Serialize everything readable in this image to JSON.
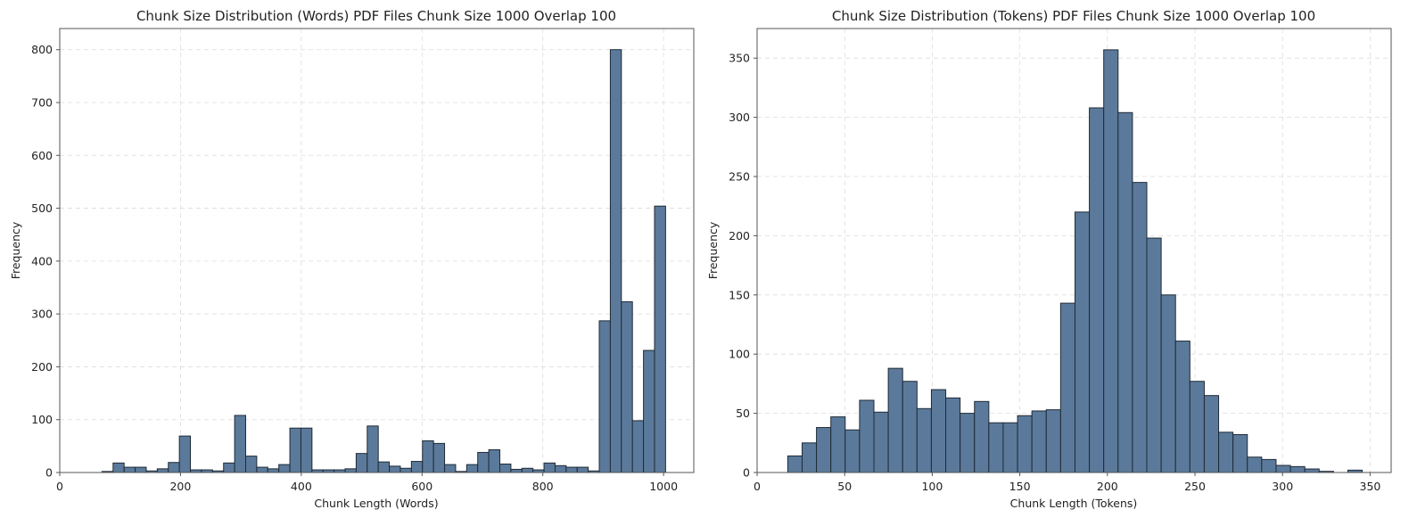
{
  "colors": {
    "bar_fill": "#5b7a9b",
    "bar_edge": "#1f2a36",
    "grid": "#dcdcdc",
    "background": "#ffffff"
  },
  "chart_data": [
    {
      "type": "bar",
      "title": "Chunk Size Distribution (Words) PDF Files Chunk Size 1000 Overlap 100",
      "xlabel": "Chunk Length (Words)",
      "ylabel": "Frequency",
      "xlim": [
        0,
        1050
      ],
      "ylim": [
        0,
        840
      ],
      "xticks": [
        0,
        200,
        400,
        600,
        800,
        1000
      ],
      "yticks": [
        0,
        100,
        200,
        300,
        400,
        500,
        600,
        700,
        800
      ],
      "grid": true,
      "bins": [
        {
          "x0": 70,
          "x1": 88.3,
          "value": 2
        },
        {
          "x0": 88.3,
          "x1": 106.6,
          "value": 18
        },
        {
          "x0": 106.6,
          "x1": 124.9,
          "value": 10
        },
        {
          "x0": 124.9,
          "x1": 143.2,
          "value": 10
        },
        {
          "x0": 143.2,
          "x1": 161.5,
          "value": 3
        },
        {
          "x0": 161.5,
          "x1": 179.8,
          "value": 7
        },
        {
          "x0": 179.8,
          "x1": 198.1,
          "value": 19
        },
        {
          "x0": 198.1,
          "x1": 216.4,
          "value": 69
        },
        {
          "x0": 216.4,
          "x1": 234.7,
          "value": 5
        },
        {
          "x0": 234.7,
          "x1": 253,
          "value": 5
        },
        {
          "x0": 253,
          "x1": 271.3,
          "value": 3
        },
        {
          "x0": 271.3,
          "x1": 289.6,
          "value": 18
        },
        {
          "x0": 289.6,
          "x1": 307.9,
          "value": 108
        },
        {
          "x0": 307.9,
          "x1": 326.2,
          "value": 31
        },
        {
          "x0": 326.2,
          "x1": 344.5,
          "value": 10
        },
        {
          "x0": 344.5,
          "x1": 362.8,
          "value": 7
        },
        {
          "x0": 362.8,
          "x1": 381.1,
          "value": 15
        },
        {
          "x0": 381.1,
          "x1": 399.4,
          "value": 84
        },
        {
          "x0": 399.4,
          "x1": 417.7,
          "value": 84
        },
        {
          "x0": 417.7,
          "x1": 436,
          "value": 5
        },
        {
          "x0": 436,
          "x1": 454.3,
          "value": 5
        },
        {
          "x0": 454.3,
          "x1": 472.6,
          "value": 5
        },
        {
          "x0": 472.6,
          "x1": 490.9,
          "value": 7
        },
        {
          "x0": 490.9,
          "x1": 509.2,
          "value": 36
        },
        {
          "x0": 509.2,
          "x1": 527.5,
          "value": 88
        },
        {
          "x0": 527.5,
          "x1": 545.8,
          "value": 20
        },
        {
          "x0": 545.8,
          "x1": 564.1,
          "value": 12
        },
        {
          "x0": 564.1,
          "x1": 582.4,
          "value": 8
        },
        {
          "x0": 582.4,
          "x1": 600.7,
          "value": 21
        },
        {
          "x0": 600.7,
          "x1": 619,
          "value": 60
        },
        {
          "x0": 619,
          "x1": 637.3,
          "value": 55
        },
        {
          "x0": 637.3,
          "x1": 655.6,
          "value": 15
        },
        {
          "x0": 655.6,
          "x1": 673.9,
          "value": 2
        },
        {
          "x0": 673.9,
          "x1": 692.2,
          "value": 15
        },
        {
          "x0": 692.2,
          "x1": 710.5,
          "value": 38
        },
        {
          "x0": 710.5,
          "x1": 728.8,
          "value": 43
        },
        {
          "x0": 728.8,
          "x1": 747.1,
          "value": 16
        },
        {
          "x0": 747.1,
          "x1": 765.4,
          "value": 6
        },
        {
          "x0": 765.4,
          "x1": 783.7,
          "value": 8
        },
        {
          "x0": 783.7,
          "x1": 802,
          "value": 5
        },
        {
          "x0": 802,
          "x1": 820.3,
          "value": 18
        },
        {
          "x0": 820.3,
          "x1": 838.6,
          "value": 13
        },
        {
          "x0": 838.6,
          "x1": 856.9,
          "value": 10
        },
        {
          "x0": 856.9,
          "x1": 875.2,
          "value": 10
        },
        {
          "x0": 875.2,
          "x1": 893.5,
          "value": 3
        },
        {
          "x0": 893.5,
          "x1": 911.8,
          "value": 287
        },
        {
          "x0": 911.8,
          "x1": 930.1,
          "value": 800
        },
        {
          "x0": 930.1,
          "x1": 948.4,
          "value": 323
        },
        {
          "x0": 948.4,
          "x1": 966.7,
          "value": 98
        },
        {
          "x0": 966.7,
          "x1": 985,
          "value": 231
        },
        {
          "x0": 985,
          "x1": 1003.3,
          "value": 504
        }
      ]
    },
    {
      "type": "bar",
      "title": "Chunk Size Distribution (Tokens) PDF Files Chunk Size 1000 Overlap 100",
      "xlabel": "Chunk Length (Tokens)",
      "ylabel": "Frequency",
      "xlim": [
        0,
        362
      ],
      "ylim": [
        0,
        375
      ],
      "xticks": [
        0,
        50,
        100,
        150,
        200,
        250,
        300,
        350
      ],
      "yticks": [
        0,
        50,
        100,
        150,
        200,
        250,
        300,
        350
      ],
      "grid": true,
      "bins": [
        {
          "x0": 17.5,
          "x1": 25.7,
          "value": 14
        },
        {
          "x0": 25.7,
          "x1": 33.9,
          "value": 25
        },
        {
          "x0": 33.9,
          "x1": 42.1,
          "value": 38
        },
        {
          "x0": 42.1,
          "x1": 50.3,
          "value": 47
        },
        {
          "x0": 50.3,
          "x1": 58.5,
          "value": 36
        },
        {
          "x0": 58.5,
          "x1": 66.7,
          "value": 61
        },
        {
          "x0": 66.7,
          "x1": 74.9,
          "value": 51
        },
        {
          "x0": 74.9,
          "x1": 83.1,
          "value": 88
        },
        {
          "x0": 83.1,
          "x1": 91.3,
          "value": 77
        },
        {
          "x0": 91.3,
          "x1": 99.5,
          "value": 54
        },
        {
          "x0": 99.5,
          "x1": 107.7,
          "value": 70
        },
        {
          "x0": 107.7,
          "x1": 115.9,
          "value": 63
        },
        {
          "x0": 115.9,
          "x1": 124.1,
          "value": 50
        },
        {
          "x0": 124.1,
          "x1": 132.3,
          "value": 60
        },
        {
          "x0": 132.3,
          "x1": 140.5,
          "value": 42
        },
        {
          "x0": 140.5,
          "x1": 148.7,
          "value": 42
        },
        {
          "x0": 148.7,
          "x1": 156.9,
          "value": 48
        },
        {
          "x0": 156.9,
          "x1": 165.1,
          "value": 52
        },
        {
          "x0": 165.1,
          "x1": 173.3,
          "value": 53
        },
        {
          "x0": 173.3,
          "x1": 181.5,
          "value": 143
        },
        {
          "x0": 181.5,
          "x1": 189.7,
          "value": 220
        },
        {
          "x0": 189.7,
          "x1": 197.9,
          "value": 308
        },
        {
          "x0": 197.9,
          "x1": 206.1,
          "value": 357
        },
        {
          "x0": 206.1,
          "x1": 214.3,
          "value": 304
        },
        {
          "x0": 214.3,
          "x1": 222.5,
          "value": 245
        },
        {
          "x0": 222.5,
          "x1": 230.7,
          "value": 198
        },
        {
          "x0": 230.7,
          "x1": 238.9,
          "value": 150
        },
        {
          "x0": 238.9,
          "x1": 247.1,
          "value": 111
        },
        {
          "x0": 247.1,
          "x1": 255.3,
          "value": 77
        },
        {
          "x0": 255.3,
          "x1": 263.5,
          "value": 65
        },
        {
          "x0": 263.5,
          "x1": 271.7,
          "value": 34
        },
        {
          "x0": 271.7,
          "x1": 279.9,
          "value": 32
        },
        {
          "x0": 279.9,
          "x1": 288.1,
          "value": 13
        },
        {
          "x0": 288.1,
          "x1": 296.3,
          "value": 11
        },
        {
          "x0": 296.3,
          "x1": 304.5,
          "value": 6
        },
        {
          "x0": 304.5,
          "x1": 312.7,
          "value": 5
        },
        {
          "x0": 312.7,
          "x1": 320.9,
          "value": 3
        },
        {
          "x0": 320.9,
          "x1": 329.1,
          "value": 1
        },
        {
          "x0": 329.1,
          "x1": 337.3,
          "value": 0
        },
        {
          "x0": 337.3,
          "x1": 345.5,
          "value": 2
        }
      ]
    }
  ]
}
